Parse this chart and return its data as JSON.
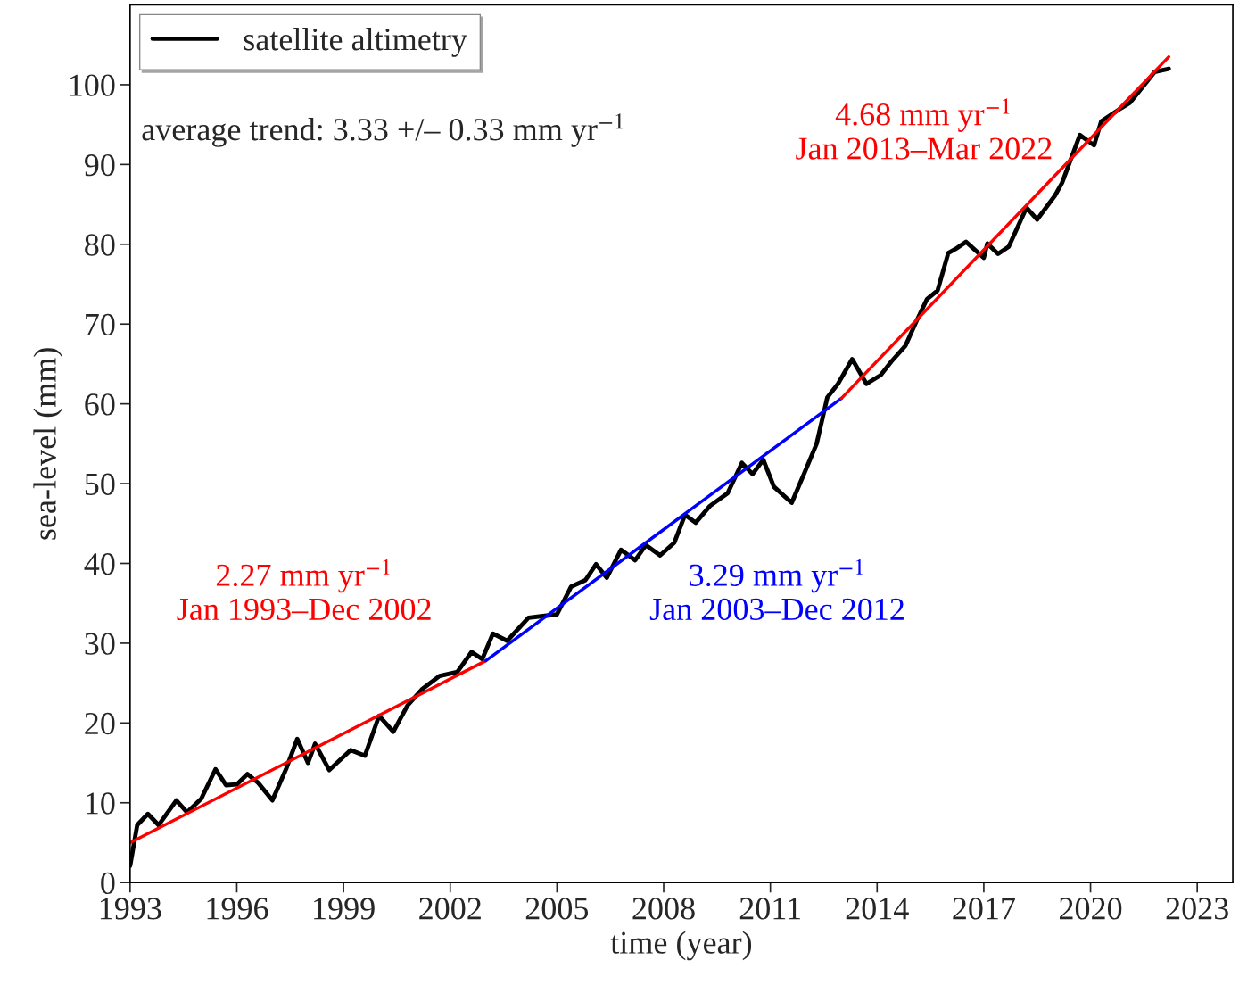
{
  "chart_data": {
    "type": "line",
    "xlabel": "time (year)",
    "ylabel": "sea-level (mm)",
    "xlim": [
      1993,
      2024
    ],
    "xticks": [
      1993,
      1996,
      1999,
      2002,
      2005,
      2008,
      2011,
      2014,
      2017,
      2020,
      2023
    ],
    "ylim": [
      0,
      110
    ],
    "yticks": [
      0,
      10,
      20,
      30,
      40,
      50,
      60,
      70,
      80,
      90,
      100
    ],
    "grid": false,
    "legend": "top left",
    "annotations": [
      "average trend: 3.33 +/– 0.33 mm yr$^{−1}$"
    ],
    "series": [
      {
        "name": "satellite altimetry",
        "color": "#000000",
        "x": [
          1993.0,
          1993.2,
          1993.5,
          1993.8,
          1994.3,
          1994.6,
          1995.0,
          1995.4,
          1995.7,
          1996.0,
          1996.3,
          1996.6,
          1997.0,
          1997.4,
          1997.7,
          1998.0,
          1998.2,
          1998.6,
          1999.2,
          1999.6,
          2000.0,
          2000.4,
          2000.8,
          2001.2,
          2001.7,
          2002.2,
          2002.6,
          2002.9,
          2003.2,
          2003.6,
          2004.2,
          2004.6,
          2005.0,
          2005.4,
          2005.8,
          2006.1,
          2006.4,
          2006.8,
          2007.2,
          2007.5,
          2007.9,
          2008.3,
          2008.6,
          2008.9,
          2009.3,
          2009.8,
          2010.2,
          2010.5,
          2010.8,
          2011.1,
          2011.6,
          2012.0,
          2012.3,
          2012.6,
          2012.9,
          2013.3,
          2013.7,
          2014.1,
          2014.4,
          2014.8,
          2015.1,
          2015.4,
          2015.7,
          2016.0,
          2016.2,
          2016.5,
          2017.0,
          2017.1,
          2017.4,
          2017.7,
          2018.2,
          2018.5,
          2019.0,
          2019.2,
          2019.7,
          2020.1,
          2020.3,
          2020.8,
          2021.1,
          2021.5,
          2021.8,
          2022.2
        ],
        "values": [
          2.1,
          7.2,
          8.6,
          7.2,
          10.3,
          8.8,
          10.5,
          14.2,
          12.2,
          12.3,
          13.6,
          12.5,
          10.3,
          14.4,
          18.0,
          15.0,
          17.4,
          14.1,
          16.6,
          15.9,
          20.9,
          18.9,
          22.2,
          24.2,
          25.9,
          26.4,
          28.9,
          28.0,
          31.2,
          30.3,
          33.2,
          33.4,
          33.6,
          37.1,
          37.9,
          39.9,
          38.2,
          41.7,
          40.4,
          42.3,
          41.0,
          42.6,
          46.1,
          45.1,
          47.2,
          48.8,
          52.6,
          51.2,
          53.0,
          49.6,
          47.6,
          51.8,
          55.0,
          60.8,
          62.5,
          65.6,
          62.5,
          63.6,
          65.3,
          67.3,
          70.3,
          73.1,
          74.2,
          78.9,
          79.4,
          80.3,
          78.3,
          80.1,
          78.8,
          79.7,
          84.6,
          83.1,
          86.1,
          87.7,
          93.7,
          92.4,
          95.4,
          96.9,
          97.7,
          99.9,
          101.6,
          102.0
        ]
      },
      {
        "name": "2.27 mm yr$^{−1}$\nJan 1993–Dec 2002",
        "color": "#ff0000",
        "x": [
          1993.0,
          2003.0
        ],
        "values": [
          5.0,
          27.8
        ]
      },
      {
        "name": "3.29 mm yr$^{−1}$\nJan 2003–Dec 2012",
        "color": "#0000ff",
        "x": [
          2003.0,
          2013.0
        ],
        "values": [
          27.8,
          60.7
        ]
      },
      {
        "name": "4.68 mm yr$^{−1}$\nJan 2013–Mar 2022",
        "color": "#ff0000",
        "x": [
          2013.0,
          2022.2
        ],
        "values": [
          60.7,
          103.5
        ]
      }
    ]
  }
}
